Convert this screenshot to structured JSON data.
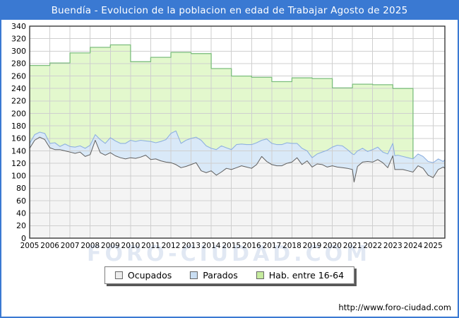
{
  "header": {
    "title": "Buendía - Evolucion de la poblacion en edad de Trabajar Agosto de 2025"
  },
  "watermark": "FORO-CIUDAD.COM",
  "footer": {
    "url": "http://www.foro-ciudad.com"
  },
  "colors": {
    "accent": "#3a79d2",
    "titlebar_text": "#ffffff",
    "grid": "#cfcfcf",
    "plot_border": "#2b2b2b",
    "watermark": "#c9d7ea",
    "ocupados_fill": "#f4f4f4",
    "ocupados_line": "#5f5f5f",
    "parados_fill": "#d9e9f8",
    "parados_line": "#8fb1e0",
    "hab_fill": "#e3f8cd",
    "hab_line": "#7dbe7e"
  },
  "legend": {
    "items": [
      {
        "label": "Ocupados",
        "color": "#ededed"
      },
      {
        "label": "Parados",
        "color": "#c9def3"
      },
      {
        "label": "Hab. entre 16-64",
        "color": "#c6ec9e"
      }
    ]
  },
  "chart_data": {
    "type": "area",
    "title": "Buendía - Evolucion de la poblacion en edad de Trabajar Agosto de 2025",
    "xlabel": "",
    "ylabel": "",
    "xlim": [
      2005,
      2025.58
    ],
    "ylim": [
      0,
      340
    ],
    "grid": true,
    "legend_position": "bottom",
    "xticks": [
      2005,
      2006,
      2007,
      2008,
      2009,
      2010,
      2011,
      2012,
      2013,
      2014,
      2015,
      2016,
      2017,
      2018,
      2019,
      2020,
      2021,
      2022,
      2023,
      2024,
      2025
    ],
    "yticks": [
      0,
      20,
      40,
      60,
      80,
      100,
      120,
      140,
      160,
      180,
      200,
      220,
      240,
      260,
      280,
      300,
      320,
      340
    ],
    "x": [
      2005,
      2005.25,
      2005.5,
      2005.75,
      2006,
      2006.25,
      2006.5,
      2006.75,
      2007,
      2007.25,
      2007.5,
      2007.75,
      2008,
      2008.25,
      2008.5,
      2008.75,
      2009,
      2009.25,
      2009.5,
      2009.75,
      2010,
      2010.25,
      2010.5,
      2010.75,
      2011,
      2011.25,
      2011.5,
      2011.75,
      2012,
      2012.25,
      2012.5,
      2012.75,
      2013,
      2013.25,
      2013.5,
      2013.75,
      2014,
      2014.25,
      2014.5,
      2014.75,
      2015,
      2015.25,
      2015.5,
      2015.75,
      2016,
      2016.25,
      2016.5,
      2016.75,
      2017,
      2017.25,
      2017.5,
      2017.75,
      2018,
      2018.25,
      2018.5,
      2018.75,
      2019,
      2019.25,
      2019.5,
      2019.75,
      2020,
      2020.25,
      2020.5,
      2020.75,
      2021,
      2021.08,
      2021.25,
      2021.5,
      2021.75,
      2022,
      2022.25,
      2022.5,
      2022.75,
      2023,
      2023.1,
      2023.25,
      2023.5,
      2023.75,
      2024,
      2024.25,
      2024.5,
      2024.75,
      2025,
      2025.25,
      2025.5,
      2025.58
    ],
    "series": [
      {
        "id": "ocupados",
        "name": "Ocupados",
        "stacked": true,
        "fill": "#f4f4f4",
        "line": "#5f5f5f",
        "values": [
          144,
          157,
          162,
          158,
          145,
          142,
          142,
          140,
          138,
          136,
          138,
          131,
          134,
          157,
          137,
          133,
          137,
          132,
          129,
          127,
          129,
          128,
          130,
          133,
          126,
          127,
          124,
          122,
          121,
          118,
          113,
          115,
          118,
          121,
          108,
          105,
          108,
          101,
          106,
          112,
          110,
          113,
          116,
          114,
          112,
          118,
          131,
          123,
          118,
          116,
          116,
          120,
          122,
          129,
          118,
          124,
          114,
          119,
          118,
          114,
          116,
          114,
          113,
          112,
          110,
          90,
          115,
          122,
          123,
          122,
          126,
          121,
          113,
          132,
          110,
          110,
          110,
          108,
          106,
          116,
          112,
          101,
          97,
          110,
          114,
          112
        ]
      },
      {
        "id": "parados",
        "name": "Parados",
        "stacked": true,
        "fill": "#d9e9f8",
        "line": "#8fb1e0",
        "values": [
          8,
          9,
          8,
          10,
          7,
          11,
          5,
          11,
          9,
          10,
          10,
          13,
          15,
          9,
          21,
          19,
          24,
          24,
          23,
          25,
          28,
          27,
          27,
          23,
          29,
          26,
          31,
          36,
          47,
          54,
          39,
          42,
          42,
          41,
          49,
          43,
          36,
          41,
          42,
          33,
          32,
          37,
          35,
          36,
          38,
          35,
          26,
          36,
          34,
          34,
          34,
          33,
          30,
          23,
          26,
          16,
          15,
          16,
          20,
          27,
          30,
          35,
          35,
          30,
          25,
          44,
          25,
          22,
          16,
          20,
          20,
          17,
          22,
          20,
          22,
          23,
          21,
          21,
          21,
          19,
          19,
          22,
          24,
          17,
          9,
          14
        ]
      },
      {
        "id": "hab_16_64",
        "name": "Hab. entre 16-64",
        "stacked": false,
        "fill": "#e3f8cd",
        "line": "#7dbe7e",
        "step": true,
        "step_until": 2024,
        "years": [
          2005,
          2006,
          2007,
          2008,
          2009,
          2010,
          2011,
          2012,
          2013,
          2014,
          2015,
          2016,
          2017,
          2018,
          2019,
          2020,
          2021,
          2022,
          2023
        ],
        "values": [
          277,
          281,
          297,
          306,
          310,
          283,
          290,
          298,
          296,
          272,
          260,
          258,
          251,
          257,
          256,
          241,
          247,
          246,
          240
        ]
      }
    ]
  }
}
